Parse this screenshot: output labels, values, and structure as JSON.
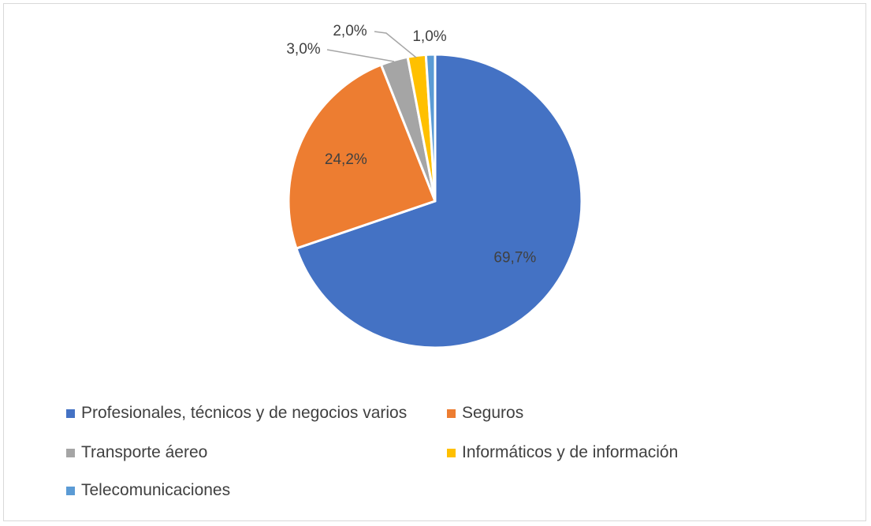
{
  "chart_data": {
    "type": "pie",
    "categories": [
      "Profesionales, técnicos y de negocios varios",
      "Seguros",
      "Transporte áereo",
      "Informáticos y de información",
      "Telecomunicaciones"
    ],
    "values": [
      69.7,
      24.2,
      3.0,
      2.0,
      1.0
    ],
    "data_labels": [
      "69,7%",
      "24,2%",
      "3,0%",
      "2,0%",
      "1,0%"
    ],
    "colors": [
      "#4472C4",
      "#ED7D31",
      "#A5A5A5",
      "#FFC000",
      "#5B9BD5"
    ],
    "legend_position": "bottom",
    "title": ""
  }
}
